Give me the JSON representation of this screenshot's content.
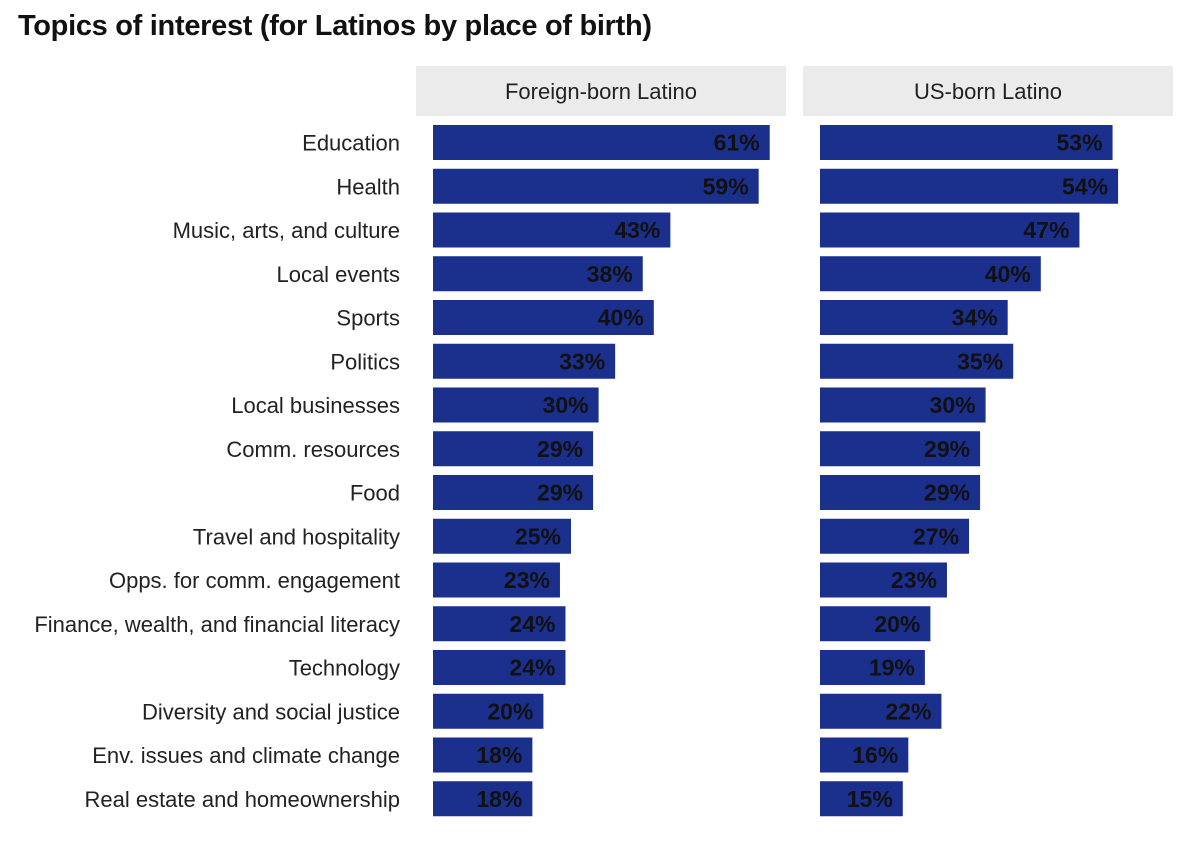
{
  "title": "Topics of interest (for Latinos by place of birth)",
  "colors": {
    "bar": "#1B2F8C",
    "panel_header": "#EBEBEB",
    "text": "#222222",
    "label": "#111111"
  },
  "chart_data": {
    "type": "bar",
    "orientation": "horizontal",
    "title": "Topics of interest (for Latinos by place of birth)",
    "unit": "%",
    "categories": [
      "Education",
      "Health",
      "Music, arts, and culture",
      "Local events",
      "Sports",
      "Politics",
      "Local businesses",
      "Comm. resources",
      "Food",
      "Travel and hospitality",
      "Opps. for comm. engagement",
      "Finance, wealth, and financial literacy",
      "Technology",
      "Diversity and social justice",
      "Env. issues and climate change",
      "Real estate and homeownership"
    ],
    "series": [
      {
        "name": "Foreign-born Latino",
        "values": [
          61,
          59,
          43,
          38,
          40,
          33,
          30,
          29,
          29,
          25,
          23,
          24,
          24,
          20,
          18,
          18
        ]
      },
      {
        "name": "US-born Latino",
        "values": [
          53,
          54,
          47,
          40,
          34,
          35,
          30,
          29,
          29,
          27,
          23,
          20,
          19,
          22,
          16,
          15
        ]
      }
    ],
    "layout": "faceted-panels"
  }
}
